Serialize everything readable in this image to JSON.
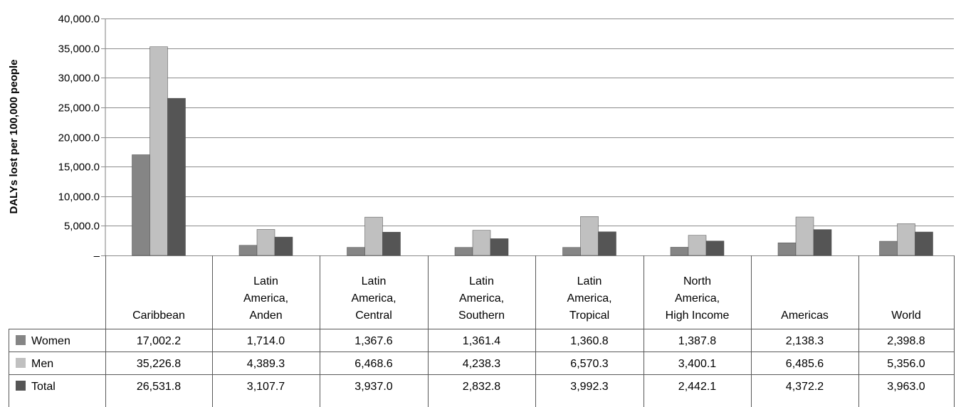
{
  "chart_data": {
    "type": "bar",
    "ylabel": "DALYs lost per 100,000 people",
    "ylim": [
      0,
      40000
    ],
    "yticks": [
      {
        "value": 0,
        "label": "–"
      },
      {
        "value": 5000,
        "label": "5,000.0"
      },
      {
        "value": 10000,
        "label": "10,000.0"
      },
      {
        "value": 15000,
        "label": "15,000.0"
      },
      {
        "value": 20000,
        "label": "20,000.0"
      },
      {
        "value": 25000,
        "label": "25,000.0"
      },
      {
        "value": 30000,
        "label": "30,000.0"
      },
      {
        "value": 35000,
        "label": "35,000.0"
      },
      {
        "value": 40000,
        "label": "40,000.0"
      }
    ],
    "grid": true,
    "legend": "data-table",
    "categories": [
      [
        "Caribbean"
      ],
      [
        "Latin",
        "America,",
        "Anden"
      ],
      [
        "Latin",
        "America,",
        "Central"
      ],
      [
        "Latin",
        "America,",
        "Southern"
      ],
      [
        "Latin",
        "America,",
        "Tropical"
      ],
      [
        "North",
        "America,",
        "High Income"
      ],
      [
        "Americas"
      ],
      [
        "World"
      ]
    ],
    "series": [
      {
        "name": "Women",
        "color": "#858585",
        "values": [
          17002.2,
          1714.0,
          1367.6,
          1361.4,
          1360.8,
          1387.8,
          2138.3,
          2398.8
        ],
        "labels": [
          "17,002.2",
          "1,714.0",
          "1,367.6",
          "1,361.4",
          "1,360.8",
          "1,387.8",
          "2,138.3",
          "2,398.8"
        ]
      },
      {
        "name": "Men",
        "color": "#c0c0c0",
        "values": [
          35226.8,
          4389.3,
          6468.6,
          4238.3,
          6570.3,
          3400.1,
          6485.6,
          5356.0
        ],
        "labels": [
          "35,226.8",
          "4,389.3",
          "6,468.6",
          "4,238.3",
          "6,570.3",
          "3,400.1",
          "6,485.6",
          "5,356.0"
        ]
      },
      {
        "name": "Total",
        "color": "#555555",
        "values": [
          26531.8,
          3107.7,
          3937.0,
          2832.8,
          3992.3,
          2442.1,
          4372.2,
          3963.0
        ],
        "labels": [
          "26,531.8",
          "3,107.7",
          "3,937.0",
          "2,832.8",
          "3,992.3",
          "2,442.1",
          "4,372.2",
          "3,963.0"
        ]
      }
    ]
  }
}
